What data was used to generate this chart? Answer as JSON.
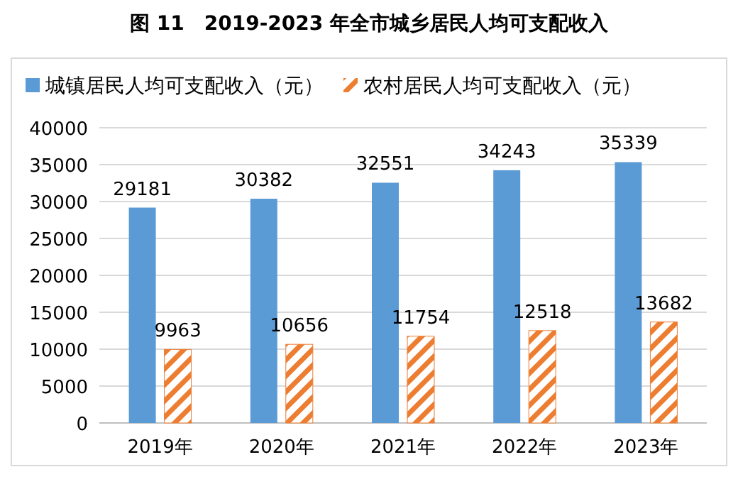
{
  "chart_data": {
    "type": "bar",
    "title": "图 11　2019-2023 年全市城乡居民人均可支配收入",
    "categories": [
      "2019年",
      "2020年",
      "2021年",
      "2022年",
      "2023年"
    ],
    "series": [
      {
        "name": "城镇居民人均可支配收入（元）",
        "color": "#5b9bd5",
        "values": [
          29181,
          30382,
          32551,
          34243,
          35339
        ]
      },
      {
        "name": "农村居民人均可支配收入（元）",
        "color": "#ed7d31",
        "values": [
          9963,
          10656,
          11754,
          12518,
          13682
        ]
      }
    ],
    "ylim": [
      0,
      40000
    ],
    "yticks": [
      0,
      5000,
      10000,
      15000,
      20000,
      25000,
      30000,
      35000,
      40000
    ],
    "grid": "y",
    "legend": "top",
    "data_labels": true
  }
}
